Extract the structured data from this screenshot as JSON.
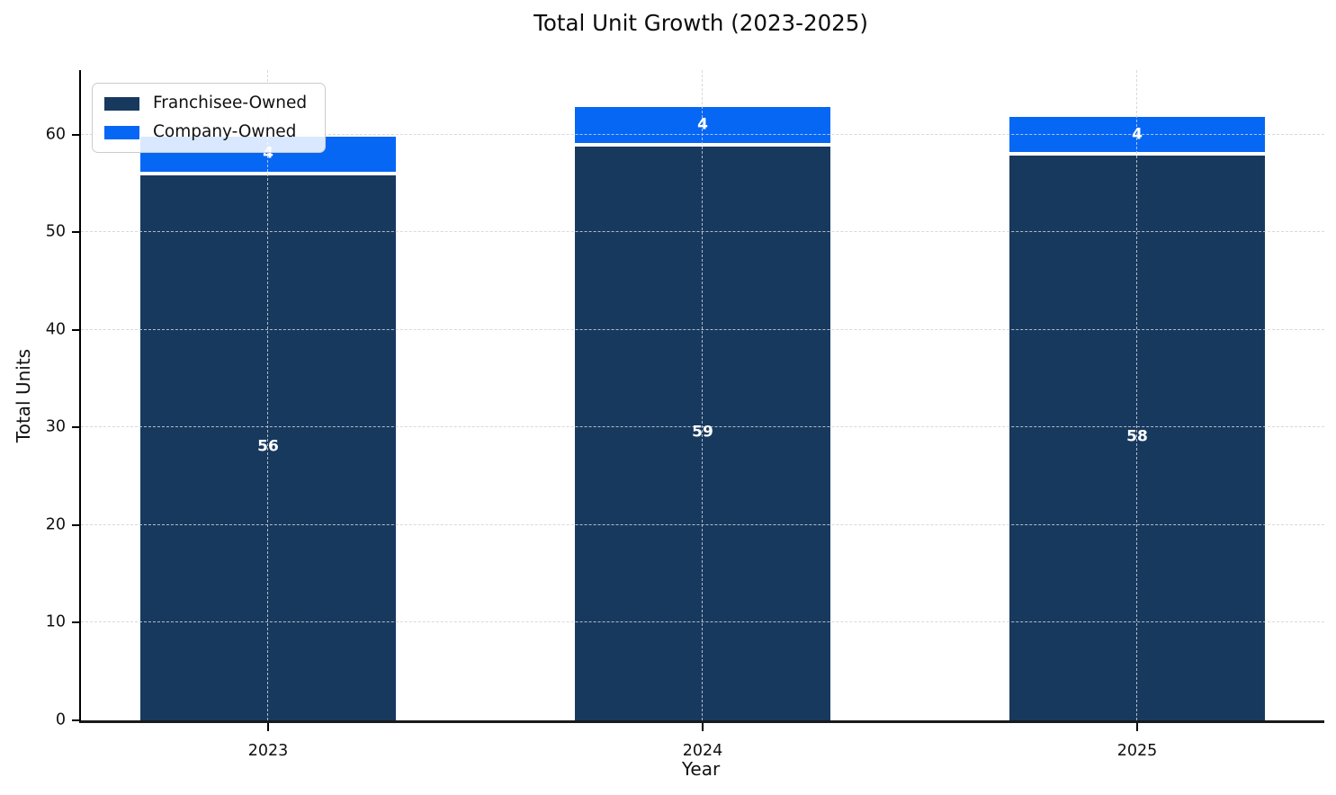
{
  "chart_data": {
    "type": "bar",
    "stacked": true,
    "title": "Total Unit Growth (2023-2025)",
    "xlabel": "Year",
    "ylabel": "Total Units",
    "categories": [
      "2023",
      "2024",
      "2025"
    ],
    "series": [
      {
        "name": "Franchisee-Owned",
        "color": "#17395E",
        "values": [
          56,
          59,
          58
        ]
      },
      {
        "name": "Company-Owned",
        "color": "#0667F5",
        "values": [
          4,
          4,
          4
        ]
      }
    ],
    "yticks": [
      0,
      10,
      20,
      30,
      40,
      50,
      60
    ],
    "ylim": [
      0,
      66.6
    ],
    "grid": {
      "horizontal": true,
      "vertical": true,
      "style": "dashed"
    },
    "legend_position": "upper left",
    "bar_label_color": "#FFFFFF",
    "bar_edge_color": "#FFFFFF"
  }
}
